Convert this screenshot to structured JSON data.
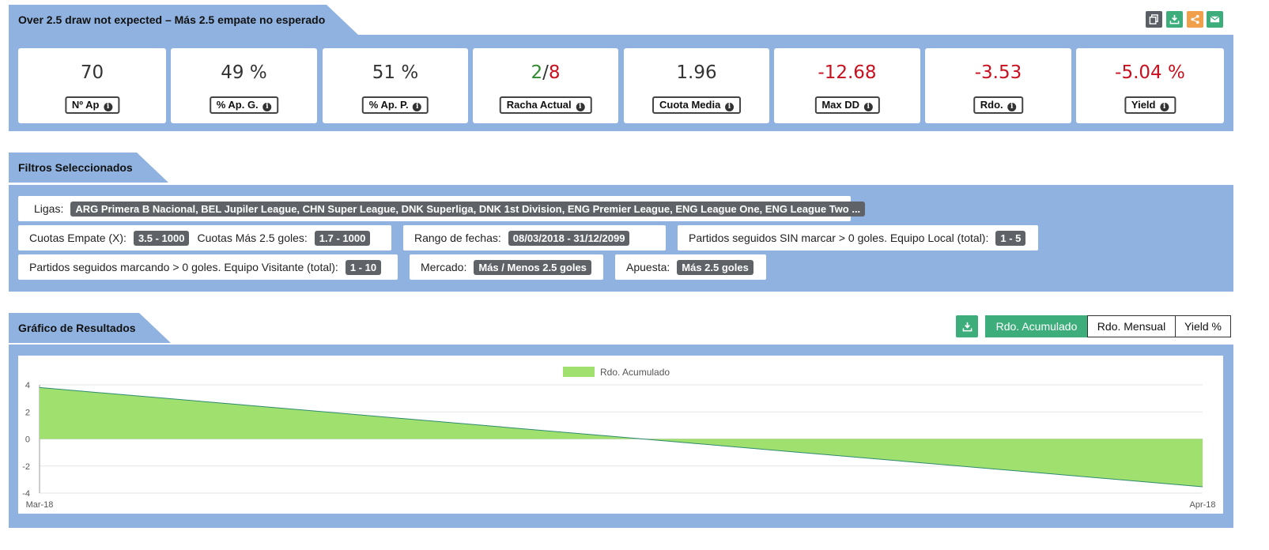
{
  "header": {
    "title": "Over 2.5 draw not expected – Más 2.5 empate no esperado",
    "buttons": [
      {
        "icon": "copy-icon",
        "color": "#5a5f66"
      },
      {
        "icon": "download-icon",
        "color": "#3dae7b"
      },
      {
        "icon": "share-icon",
        "color": "#f0a04b"
      },
      {
        "icon": "envelope-icon",
        "color": "#3dae7b"
      }
    ]
  },
  "stats": [
    {
      "value": "70",
      "label": "Nº Ap"
    },
    {
      "value": "49 %",
      "label": "% Ap. G."
    },
    {
      "value": "51 %",
      "label": "% Ap. P."
    },
    {
      "value_win": "2",
      "value_sep": "/",
      "value_loss": "8",
      "label": "Racha Actual"
    },
    {
      "value": "1.96",
      "label": "Cuota Media"
    },
    {
      "value": "-12.68",
      "label": "Max DD"
    },
    {
      "value": "-3.53",
      "label": "Rdo."
    },
    {
      "value": "-5.04 %",
      "label": "Yield"
    }
  ],
  "filters": {
    "title": "Filtros Seleccionados",
    "ligas_label": "Ligas:",
    "ligas_value": "ARG Primera B Nacional, BEL Jupiler League, CHN Super League, DNK Superliga, DNK 1st Division, ENG Premier League, ENG League One, ENG League Two ...",
    "cuotas_empate_label": "Cuotas Empate (X):",
    "cuotas_empate_value": "3.5 - 1000",
    "cuotas_mas_label": "Cuotas Más 2.5 goles:",
    "cuotas_mas_value": "1.7 - 1000",
    "rango_label": "Rango de fechas:",
    "rango_value": "08/03/2018 - 31/12/2099",
    "sin_marcar_label": "Partidos seguidos SIN marcar > 0 goles. Equipo Local (total):",
    "sin_marcar_value": "1 - 5",
    "marcando_label": "Partidos seguidos marcando > 0 goles. Equipo Visitante (total):",
    "marcando_value": "1 - 10",
    "mercado_label": "Mercado:",
    "mercado_value": "Más / Menos 2.5 goles",
    "apuesta_label": "Apuesta:",
    "apuesta_value": "Más 2.5 goles"
  },
  "results": {
    "title": "Gráfico de Resultados",
    "tabs": [
      "Rdo. Acumulado",
      "Rdo. Mensual",
      "Yield %"
    ],
    "active_tab": "Rdo. Acumulado"
  },
  "chart_data": {
    "type": "area",
    "x": [
      "Mar-18",
      "Apr-18"
    ],
    "series": [
      {
        "name": "Rdo. Acumulado",
        "values": [
          3.8,
          -3.53
        ],
        "color": "#9fe06e",
        "line_color": "#2e8a6e"
      }
    ],
    "ylim": [
      -4,
      4
    ],
    "yticks": [
      "4",
      "2",
      "0",
      "-2",
      "-4"
    ],
    "xticks": [
      "Mar-18",
      "Apr-18"
    ],
    "legend_position": "top-center",
    "grid": true
  }
}
